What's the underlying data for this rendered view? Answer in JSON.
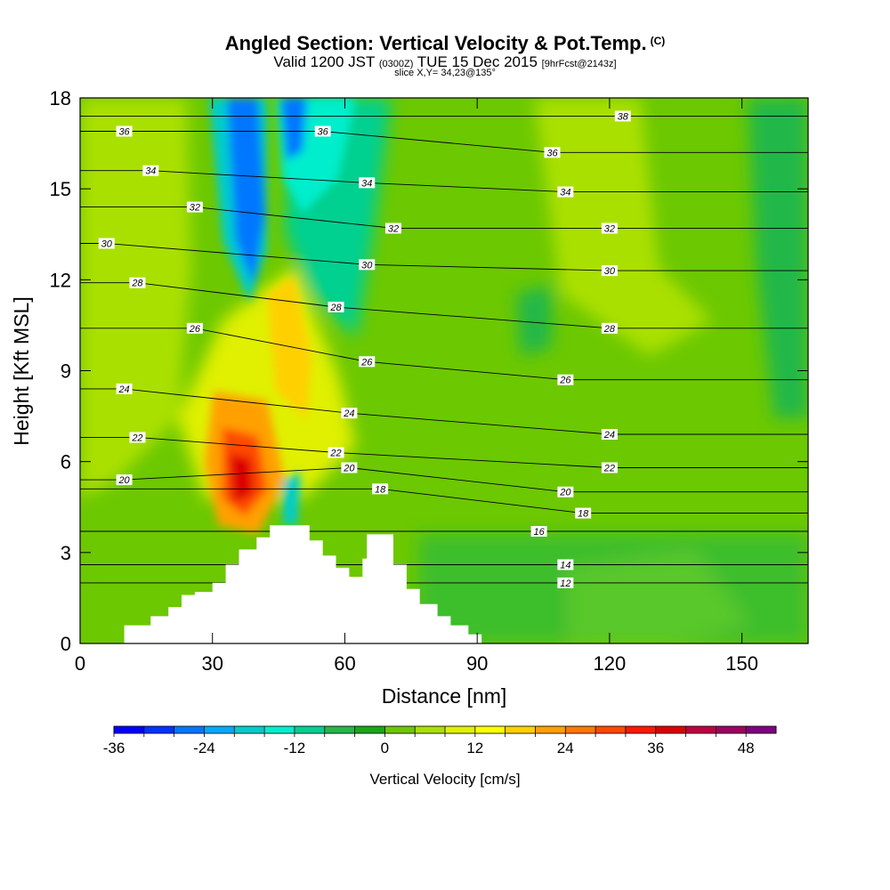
{
  "chart_data": {
    "type": "heatmap",
    "title": "Angled Section: Vertical Velocity & Pot.Temp.",
    "title_mark": "(C)",
    "subtitle_main": "Valid 1200 JST",
    "subtitle_utc": "(0300Z)",
    "subtitle_date": "TUE 15 Dec 2015",
    "subtitle_fcst": "[9hrFcst@2143z]",
    "slice_label": "slice X,Y= 34,23@135°",
    "xlabel": "Distance [nm]",
    "ylabel": "Height [Kft MSL]",
    "xlim": [
      0,
      165
    ],
    "ylim": [
      0,
      18
    ],
    "x_ticks": [
      0,
      30,
      60,
      90,
      120,
      150
    ],
    "y_ticks": [
      0,
      3,
      6,
      9,
      12,
      15,
      18
    ],
    "colorbar": {
      "label": "Vertical Velocity [cm/s]",
      "min": -36,
      "max": 52,
      "step": 4,
      "ticks": [
        -36,
        -24,
        -12,
        0,
        12,
        24,
        36,
        48
      ],
      "colors": [
        "#0000ff",
        "#0033ff",
        "#0077ff",
        "#00aaff",
        "#00cccc",
        "#00eecc",
        "#00d090",
        "#22b84a",
        "#18a818",
        "#6cc800",
        "#aae000",
        "#e0f000",
        "#ffff00",
        "#ffd000",
        "#ffa000",
        "#ff7800",
        "#ff4800",
        "#ff1800",
        "#dd0000",
        "#c00040",
        "#a00060",
        "#800080"
      ]
    },
    "terrain_profile": [
      [
        0,
        0
      ],
      [
        10,
        0
      ],
      [
        10,
        0.6
      ],
      [
        16,
        0.6
      ],
      [
        16,
        0.9
      ],
      [
        20,
        0.9
      ],
      [
        20,
        1.2
      ],
      [
        23,
        1.2
      ],
      [
        23,
        1.6
      ],
      [
        26,
        1.6
      ],
      [
        26,
        1.7
      ],
      [
        30,
        1.7
      ],
      [
        30,
        2.0
      ],
      [
        33,
        2.0
      ],
      [
        33,
        2.6
      ],
      [
        36,
        2.6
      ],
      [
        36,
        3.1
      ],
      [
        40,
        3.1
      ],
      [
        40,
        3.5
      ],
      [
        43,
        3.5
      ],
      [
        43,
        3.9
      ],
      [
        52,
        3.9
      ],
      [
        52,
        3.4
      ],
      [
        55,
        3.4
      ],
      [
        55,
        2.9
      ],
      [
        58,
        2.9
      ],
      [
        58,
        2.5
      ],
      [
        61,
        2.5
      ],
      [
        61,
        2.2
      ],
      [
        64,
        2.2
      ],
      [
        64,
        2.8
      ],
      [
        65,
        2.8
      ],
      [
        65,
        3.6
      ],
      [
        71,
        3.6
      ],
      [
        71,
        2.6
      ],
      [
        74,
        2.6
      ],
      [
        74,
        1.8
      ],
      [
        77,
        1.8
      ],
      [
        77,
        1.3
      ],
      [
        81,
        1.3
      ],
      [
        81,
        0.9
      ],
      [
        84,
        0.9
      ],
      [
        84,
        0.6
      ],
      [
        88,
        0.6
      ],
      [
        88,
        0.3
      ],
      [
        91,
        0.3
      ],
      [
        91,
        0
      ],
      [
        165,
        0
      ]
    ],
    "potential_temperature_labels": [
      {
        "value": 38,
        "x": 123,
        "y": 17.4
      },
      {
        "value": 36,
        "x": 10,
        "y": 16.9
      },
      {
        "value": 36,
        "x": 55,
        "y": 16.9
      },
      {
        "value": 36,
        "x": 107,
        "y": 16.2
      },
      {
        "value": 34,
        "x": 16,
        "y": 15.6
      },
      {
        "value": 34,
        "x": 65,
        "y": 15.2
      },
      {
        "value": 34,
        "x": 110,
        "y": 14.9
      },
      {
        "value": 32,
        "x": 26,
        "y": 14.4
      },
      {
        "value": 32,
        "x": 71,
        "y": 13.7
      },
      {
        "value": 32,
        "x": 120,
        "y": 13.7
      },
      {
        "value": 30,
        "x": 6,
        "y": 13.2
      },
      {
        "value": 30,
        "x": 65,
        "y": 12.5
      },
      {
        "value": 30,
        "x": 120,
        "y": 12.3
      },
      {
        "value": 28,
        "x": 13,
        "y": 11.9
      },
      {
        "value": 28,
        "x": 58,
        "y": 11.1
      },
      {
        "value": 28,
        "x": 120,
        "y": 10.4
      },
      {
        "value": 26,
        "x": 26,
        "y": 10.4
      },
      {
        "value": 26,
        "x": 65,
        "y": 9.3
      },
      {
        "value": 26,
        "x": 110,
        "y": 8.7
      },
      {
        "value": 24,
        "x": 10,
        "y": 8.4
      },
      {
        "value": 24,
        "x": 61,
        "y": 7.6
      },
      {
        "value": 24,
        "x": 120,
        "y": 6.9
      },
      {
        "value": 22,
        "x": 13,
        "y": 6.8
      },
      {
        "value": 22,
        "x": 58,
        "y": 6.3
      },
      {
        "value": 22,
        "x": 120,
        "y": 5.8
      },
      {
        "value": 20,
        "x": 10,
        "y": 5.4
      },
      {
        "value": 20,
        "x": 61,
        "y": 5.8
      },
      {
        "value": 20,
        "x": 110,
        "y": 5.0
      },
      {
        "value": 18,
        "x": 68,
        "y": 5.1
      },
      {
        "value": 18,
        "x": 114,
        "y": 4.3
      },
      {
        "value": 16,
        "x": 104,
        "y": 3.7
      },
      {
        "value": 14,
        "x": 110,
        "y": 2.6
      },
      {
        "value": 12,
        "x": 110,
        "y": 2.0
      }
    ]
  }
}
